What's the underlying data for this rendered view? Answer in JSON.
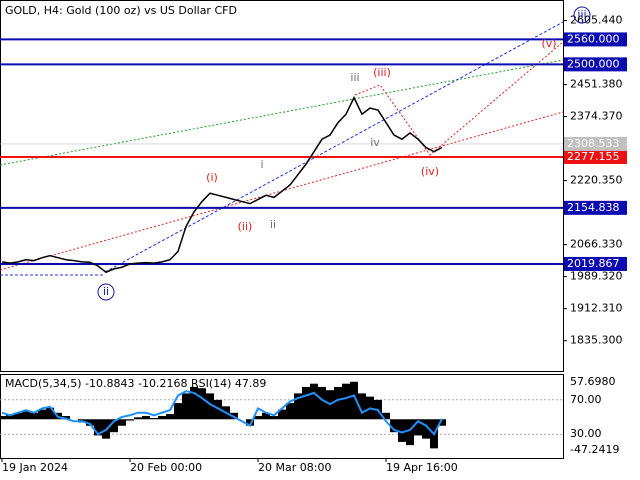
{
  "chart_data": [
    {
      "type": "price",
      "title": "GOLD, H4:  Gold (100 oz) vs US Dollar CFD",
      "categories": [
        "19 Jan 2024",
        null,
        null,
        null,
        null,
        null,
        null,
        null,
        null,
        null,
        null,
        null,
        null,
        null,
        null,
        null,
        "20 Feb 00:00",
        null,
        null,
        null,
        null,
        null,
        null,
        null,
        null,
        null,
        null,
        null,
        null,
        null,
        null,
        null,
        "20 Mar 08:00",
        null,
        null,
        null,
        null,
        null,
        null,
        null,
        null,
        null,
        null,
        null,
        null,
        null,
        null,
        null,
        "19 Apr 16:00",
        null,
        null,
        null,
        null,
        null,
        null,
        null
      ],
      "series": [
        {
          "name": "GOLD",
          "color": "#000000",
          "values": [
            2025,
            2022,
            2025,
            2030,
            2028,
            2035,
            2040,
            2035,
            2030,
            2028,
            2025,
            2024,
            2015,
            2000,
            2008,
            2012,
            2020,
            2022,
            2023,
            2022,
            2025,
            2030,
            2050,
            2110,
            2145,
            2170,
            2190,
            2185,
            2180,
            2175,
            2170,
            2165,
            2175,
            2185,
            2180,
            2195,
            2210,
            2235,
            2260,
            2290,
            2320,
            2330,
            2360,
            2380,
            2420,
            2380,
            2395,
            2390,
            2360,
            2330,
            2320,
            2335,
            2320,
            2300,
            2290,
            2300
          ]
        }
      ],
      "ylim": [
        1760,
        2650
      ],
      "yticks": [
        {
          "value": 2605.44,
          "label": "2605.440"
        },
        {
          "value": 2451.38,
          "label": "2451.380"
        },
        {
          "value": 2374.37,
          "label": "2374.370"
        },
        {
          "value": 2220.35,
          "label": "2220.350"
        },
        {
          "value": 2066.33,
          "label": "2066.330"
        },
        {
          "value": 1989.32,
          "label": "1989.320"
        },
        {
          "value": 1912.31,
          "label": "1912.310"
        },
        {
          "value": 1835.3,
          "label": "1835.300"
        }
      ],
      "levels": [
        {
          "value": 2560,
          "label": "2560.000",
          "color": "#0a0ab0"
        },
        {
          "value": 2500,
          "label": "2500.000",
          "color": "#0a0ab0"
        },
        {
          "value": 2277.155,
          "label": "2277.155",
          "color": "#ee1111"
        },
        {
          "value": 2154.838,
          "label": "2154.838",
          "color": "#0a0ab0"
        },
        {
          "value": 2019.867,
          "label": "2019.867",
          "color": "#0a0ab0"
        }
      ],
      "current_price": {
        "value": 2308.533,
        "label": "2308.533",
        "color": "#c0c0c0"
      },
      "annotations": [
        {
          "text": "iii",
          "color": "#1a1aa0",
          "circled": true
        },
        {
          "text": "(v)",
          "color": "#e02020",
          "circled": false
        },
        {
          "text": "iii",
          "color": "#707070",
          "circled": false
        },
        {
          "text": "(iii)",
          "color": "#e02020",
          "circled": false
        },
        {
          "text": "iv",
          "color": "#707070",
          "circled": false
        },
        {
          "text": "(iv)",
          "color": "#e02020",
          "circled": false
        },
        {
          "text": "i",
          "color": "#707070",
          "circled": false
        },
        {
          "text": "(i)",
          "color": "#e02020",
          "circled": false
        },
        {
          "text": "(ii)",
          "color": "#e02020",
          "circled": false
        },
        {
          "text": "ii",
          "color": "#707070",
          "circled": false
        },
        {
          "text": "ii",
          "color": "#1a1aa0",
          "circled": true
        }
      ]
    },
    {
      "type": "indicator",
      "title": "MACD(5,34,5) -10.8843 -10.2168 RSI(14) 47.89",
      "series": [
        {
          "name": "MACD",
          "color": "#000000",
          "values": [
            5,
            8,
            10,
            12,
            10,
            15,
            18,
            10,
            5,
            0,
            -5,
            -10,
            -25,
            -30,
            -20,
            -10,
            -2,
            3,
            5,
            2,
            5,
            8,
            25,
            40,
            50,
            48,
            40,
            30,
            20,
            10,
            0,
            -10,
            5,
            10,
            5,
            15,
            25,
            40,
            50,
            55,
            50,
            45,
            50,
            55,
            58,
            40,
            35,
            30,
            10,
            -20,
            -35,
            -40,
            -25,
            -30,
            -45,
            -10
          ]
        },
        {
          "name": "RSI",
          "color": "#1e90ff",
          "axis": "y2",
          "values": [
            55,
            52,
            55,
            58,
            55,
            60,
            62,
            50,
            48,
            45,
            45,
            42,
            30,
            35,
            45,
            50,
            52,
            55,
            55,
            52,
            55,
            58,
            75,
            80,
            78,
            72,
            65,
            60,
            55,
            50,
            45,
            40,
            60,
            55,
            52,
            60,
            68,
            72,
            75,
            78,
            70,
            65,
            70,
            72,
            75,
            55,
            60,
            58,
            45,
            35,
            32,
            35,
            45,
            40,
            30,
            47.89
          ]
        }
      ],
      "ylim": [
        -63,
        70
      ],
      "yticks": [
        {
          "value": 57.698,
          "label": "57.6980"
        },
        -47.2419
      ],
      "y2lim": [
        0,
        100
      ],
      "y2ticks": [
        {
          "value": 70,
          "label": "70.00"
        },
        {
          "value": 30,
          "label": "30.00"
        }
      ]
    }
  ]
}
